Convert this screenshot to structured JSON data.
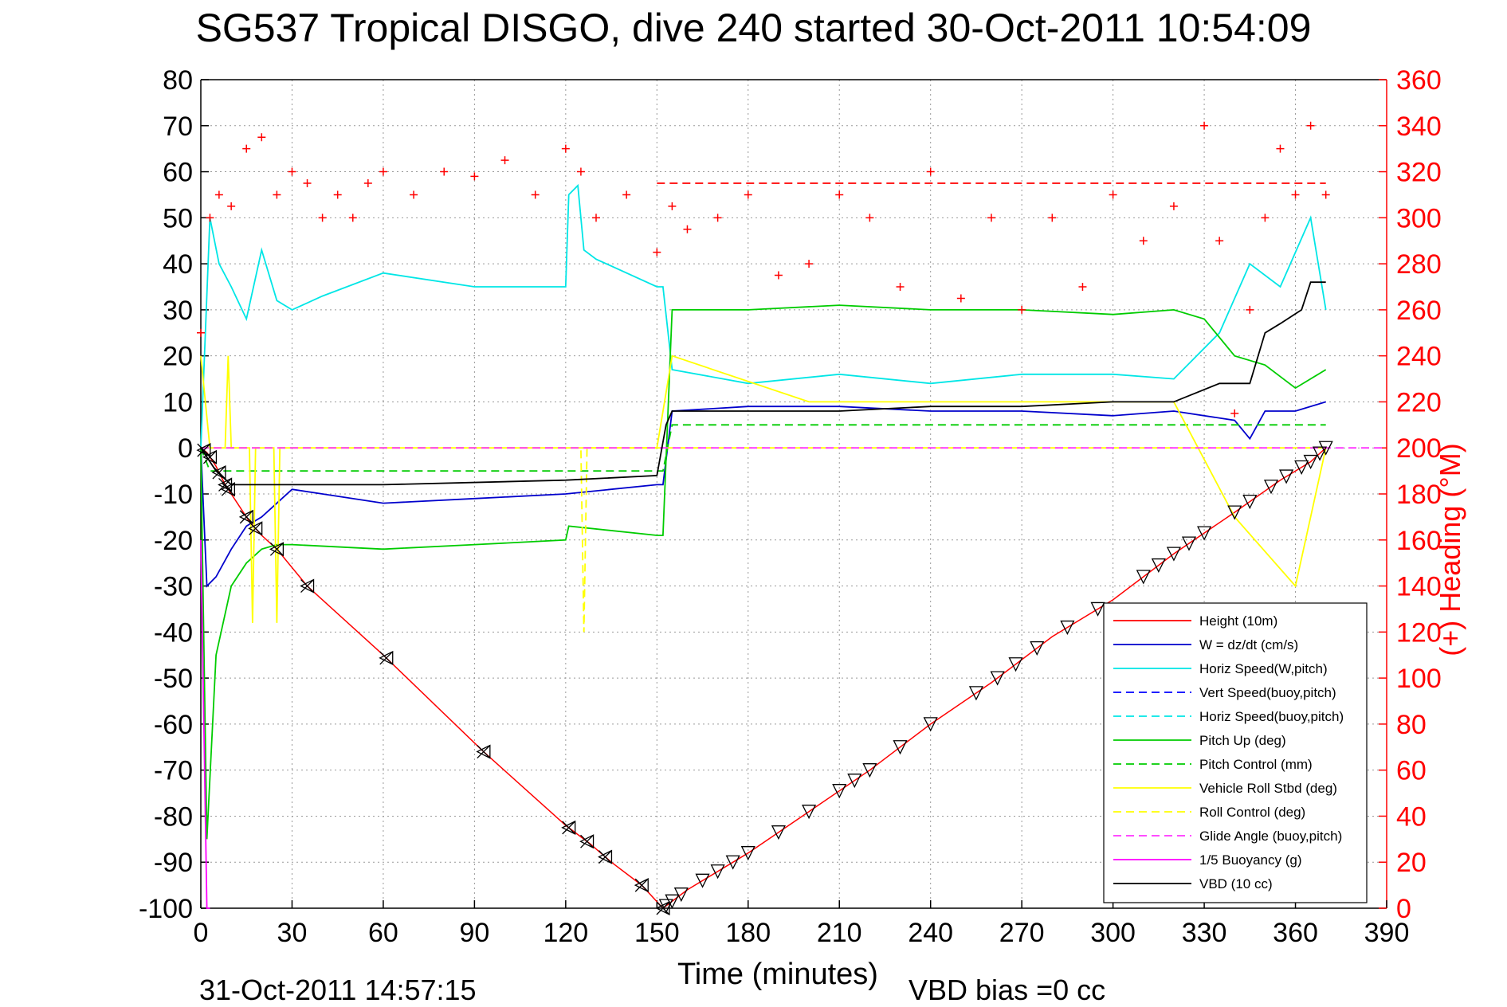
{
  "header": {
    "title": "SG537 Tropical DISGO, dive 240 started 30-Oct-2011 10:54:09",
    "timestamp": "31-Oct-2011 14:57:15",
    "vbd_bias": "VBD bias =0 cc"
  },
  "chart_data": {
    "type": "line",
    "title": "SG537 Tropical DISGO, dive 240 started 30-Oct-2011 10:54:09",
    "xlabel": "Time (minutes)",
    "ylabel": "",
    "y2label": "(+) Heading (°M)",
    "xlim": [
      0,
      390
    ],
    "ylim": [
      -100,
      80
    ],
    "y2lim": [
      0,
      360
    ],
    "xticks": [
      0,
      30,
      60,
      90,
      120,
      150,
      180,
      210,
      240,
      270,
      300,
      330,
      360,
      390
    ],
    "yticks": [
      -100,
      -90,
      -80,
      -70,
      -60,
      -50,
      -40,
      -30,
      -20,
      -10,
      0,
      10,
      20,
      30,
      40,
      50,
      60,
      70,
      80
    ],
    "y2ticks": [
      0,
      20,
      40,
      60,
      80,
      100,
      120,
      140,
      160,
      180,
      200,
      220,
      240,
      260,
      280,
      300,
      320,
      340,
      360
    ],
    "grid": true,
    "legend_position": "bottom-right",
    "series": [
      {
        "name": "Height (10m)",
        "color": "#ff0000",
        "style": "solid",
        "x": [
          0,
          2,
          5,
          8,
          12,
          16,
          20,
          25,
          35,
          60,
          93,
          120,
          128,
          135,
          145,
          152,
          160,
          180,
          200,
          220,
          240,
          260,
          280,
          300,
          320,
          340,
          355,
          365,
          370
        ],
        "y": [
          0,
          -1,
          -4,
          -8,
          -12,
          -16,
          -19,
          -22,
          -30,
          -45,
          -66,
          -82,
          -86,
          -90,
          -95,
          -100,
          -96,
          -88,
          -79,
          -70,
          -60,
          -51,
          -41,
          -33,
          -23,
          -14,
          -7,
          -3,
          0
        ]
      },
      {
        "name": "W = dz/dt (cm/s)",
        "color": "#0000cc",
        "style": "solid",
        "x": [
          0,
          2,
          5,
          10,
          15,
          20,
          25,
          30,
          40,
          60,
          90,
          120,
          150,
          152,
          155,
          180,
          210,
          240,
          270,
          300,
          320,
          340,
          345,
          350,
          360,
          370
        ],
        "y": [
          0,
          -30,
          -28,
          -22,
          -17,
          -15,
          -12,
          -9,
          -10,
          -12,
          -11,
          -10,
          -8,
          -8,
          8,
          9,
          9,
          8,
          8,
          7,
          8,
          6,
          2,
          8,
          8,
          10
        ]
      },
      {
        "name": "Horiz Speed(W,pitch)",
        "color": "#00e6e6",
        "style": "solid",
        "x": [
          0,
          3,
          6,
          10,
          15,
          20,
          25,
          30,
          40,
          60,
          90,
          120,
          121,
          124,
          126,
          130,
          150,
          152,
          155,
          180,
          210,
          240,
          270,
          300,
          320,
          335,
          345,
          355,
          365,
          370
        ],
        "y": [
          0,
          50,
          40,
          35,
          28,
          43,
          32,
          30,
          33,
          38,
          35,
          35,
          55,
          57,
          43,
          41,
          35,
          35,
          17,
          14,
          16,
          14,
          16,
          16,
          15,
          25,
          40,
          35,
          50,
          30
        ]
      },
      {
        "name": "Vert Speed(buoy,pitch)",
        "color": "#0000ff",
        "style": "dashed",
        "x": [],
        "y": []
      },
      {
        "name": "Horiz Speed(buoy,pitch)",
        "color": "#00e6e6",
        "style": "dashed",
        "x": [],
        "y": []
      },
      {
        "name": "Pitch Up (deg)",
        "color": "#00cc00",
        "style": "solid",
        "x": [
          0,
          2,
          5,
          10,
          15,
          20,
          25,
          30,
          60,
          90,
          120,
          121,
          150,
          152,
          155,
          180,
          210,
          240,
          270,
          300,
          320,
          330,
          340,
          350,
          360,
          370
        ],
        "y": [
          0,
          -85,
          -45,
          -30,
          -25,
          -22,
          -21,
          -21,
          -22,
          -21,
          -20,
          -17,
          -19,
          -19,
          30,
          30,
          31,
          30,
          30,
          29,
          30,
          28,
          20,
          18,
          13,
          17
        ]
      },
      {
        "name": "Pitch Control (mm)",
        "color": "#00cc00",
        "style": "dashed",
        "x": [
          0,
          3,
          150,
          152,
          155,
          370
        ],
        "y": [
          0,
          -5,
          -5,
          -5,
          5,
          5
        ]
      },
      {
        "name": "Vehicle Roll Stbd (deg)",
        "color": "#ffff00",
        "style": "solid",
        "x": [
          0,
          3,
          8,
          9,
          10,
          16,
          17,
          18,
          24,
          25,
          26,
          150,
          155,
          200,
          250,
          300,
          320,
          340,
          360,
          370
        ],
        "y": [
          20,
          0,
          0,
          20,
          0,
          0,
          -38,
          0,
          0,
          -38,
          0,
          0,
          20,
          10,
          10,
          10,
          10,
          -15,
          -30,
          0
        ]
      },
      {
        "name": "Roll Control (deg)",
        "color": "#ffff00",
        "style": "dashed",
        "x": [
          0,
          125,
          126,
          127,
          155,
          370
        ],
        "y": [
          0,
          0,
          -40,
          0,
          0,
          0
        ]
      },
      {
        "name": "Glide Angle (buoy,pitch)",
        "color": "#ff33ff",
        "style": "dashed",
        "x": [
          0,
          390
        ],
        "y": [
          0,
          0
        ]
      },
      {
        "name": "1/5 Buoyancy (g)",
        "color": "#ff00ff",
        "style": "solid",
        "x": [
          0,
          1,
          2,
          3
        ],
        "y": [
          -20,
          -60,
          -100,
          -100
        ]
      },
      {
        "name": "VBD (10 cc)",
        "color": "#000000",
        "style": "solid",
        "x": [
          0,
          5,
          10,
          60,
          120,
          150,
          153,
          155,
          180,
          210,
          240,
          270,
          300,
          320,
          335,
          345,
          350,
          355,
          362,
          365,
          370
        ],
        "y": [
          0,
          -5,
          -8,
          -8,
          -7,
          -6,
          5,
          8,
          8,
          8,
          9,
          9,
          10,
          10,
          14,
          14,
          25,
          27,
          30,
          36,
          36
        ]
      },
      {
        "name": "Heading",
        "axis": "y2",
        "color": "#ff0000",
        "style": "markers",
        "x": [
          0,
          3,
          6,
          10,
          15,
          20,
          25,
          30,
          35,
          40,
          45,
          50,
          55,
          60,
          70,
          80,
          90,
          100,
          110,
          120,
          125,
          130,
          140,
          150,
          155,
          160,
          170,
          180,
          190,
          200,
          210,
          220,
          230,
          240,
          250,
          260,
          270,
          280,
          290,
          300,
          310,
          320,
          330,
          335,
          340,
          345,
          350,
          355,
          360,
          365,
          370
        ],
        "y": [
          250,
          300,
          310,
          305,
          330,
          335,
          310,
          320,
          315,
          300,
          310,
          300,
          315,
          320,
          310,
          320,
          318,
          325,
          310,
          330,
          320,
          300,
          310,
          285,
          305,
          295,
          300,
          310,
          275,
          280,
          310,
          300,
          270,
          320,
          265,
          300,
          260,
          300,
          270,
          310,
          290,
          305,
          340,
          290,
          215,
          260,
          300,
          330,
          310,
          340,
          310
        ]
      },
      {
        "name": "Heading reference",
        "axis": "y2",
        "color": "#ff0000",
        "style": "dashed",
        "x": [
          150,
          370
        ],
        "y": [
          315,
          315
        ]
      }
    ],
    "markers": {
      "dive": {
        "symbol": "left-triangle-x",
        "x": [
          1,
          3,
          6,
          8,
          9,
          15,
          18,
          25,
          35,
          61,
          93,
          121,
          127,
          133,
          145,
          152
        ]
      },
      "climb": {
        "symbol": "down-triangle",
        "x": [
          153,
          155,
          158,
          165,
          170,
          175,
          180,
          190,
          200,
          210,
          215,
          220,
          230,
          240,
          255,
          262,
          268,
          275,
          285,
          295,
          310,
          315,
          320,
          325,
          330,
          340,
          345,
          352,
          357,
          362,
          365,
          368,
          370
        ]
      }
    }
  }
}
